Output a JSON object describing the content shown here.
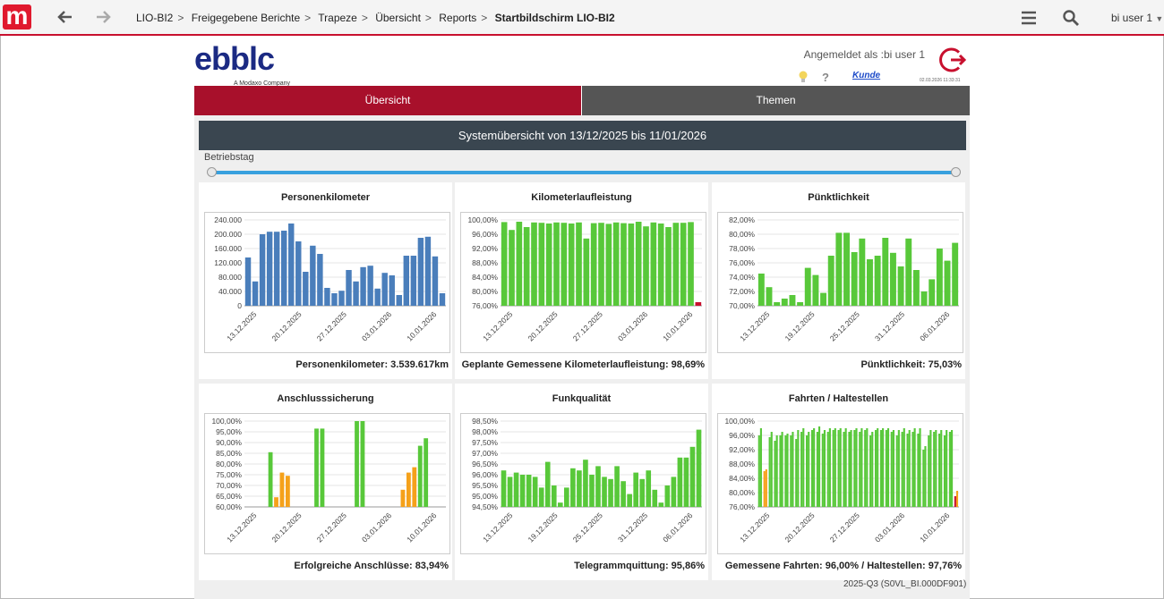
{
  "app": {
    "logo_letter": "m",
    "brand_name": "ebblc",
    "brand_sub": "A Modaxo Company"
  },
  "breadcrumb": [
    "LIO-BI2",
    "Freigegebene Berichte",
    "Trapeze",
    "Übersicht",
    "Reports"
  ],
  "breadcrumb_current": "Startbildschirm LIO-BI2",
  "user_menu": "bi user 1",
  "header": {
    "logged_in": "Angemeldet als :bi user 1",
    "kunde": "Kunde",
    "timestamp": "02.03.2026 11:33:31"
  },
  "tabs": [
    {
      "label": "Übersicht",
      "active": true
    },
    {
      "label": "Themen",
      "active": false
    }
  ],
  "banner": "Systemübersicht von 13/12/2025 bis 11/01/2026",
  "slider_label": "Betriebstag",
  "footer_code": "2025-Q3 (S0VL_BI.000DF901)",
  "colors": {
    "accent": "#a8102b",
    "blue_bar": "#4a7ebb",
    "green_bar": "#58c83a",
    "orange_bar": "#f5a11a",
    "red_bar": "#c8102e"
  },
  "panels": [
    {
      "title": "Personenkilometer",
      "footer": "Personenkilometer: 3.539.617km",
      "chart_data": {
        "type": "bar",
        "yticks": [
          "240.000",
          "200.000",
          "160.000",
          "120.000",
          "80.000",
          "40.000",
          "0"
        ],
        "ylim": [
          0,
          240000
        ],
        "xticks": [
          "13.12.2025",
          "20.12.2025",
          "27.12.2025",
          "03.01.2026",
          "10.01.2026"
        ],
        "values": [
          135000,
          68000,
          200000,
          207000,
          207000,
          210000,
          230000,
          180000,
          95000,
          168000,
          145000,
          50000,
          35000,
          42000,
          100000,
          68000,
          108000,
          112000,
          48000,
          92000,
          85000,
          30000,
          140000,
          140000,
          190000,
          193000,
          138000,
          35000
        ],
        "colors": [
          "blue"
        ]
      }
    },
    {
      "title": "Kilometerlaufleistung",
      "footer": "Geplante Gemessene Kilometerlaufleistung: 98,69%",
      "chart_data": {
        "type": "bar",
        "yticks": [
          "100,00%",
          "96,00%",
          "92,00%",
          "88,00%",
          "84,00%",
          "80,00%",
          "76,00%"
        ],
        "ylim": [
          76,
          100
        ],
        "xticks": [
          "13.12.2025",
          "20.12.2025",
          "27.12.2025",
          "03.01.2026",
          "10.01.2026"
        ],
        "values": [
          99.4,
          97.2,
          99.5,
          98.0,
          99.3,
          99.2,
          99.0,
          99.3,
          99.2,
          99.0,
          99.3,
          94.8,
          99.1,
          99.2,
          98.9,
          99.3,
          99.1,
          99.0,
          99.5,
          98.2,
          99.3,
          99.0,
          98.0,
          99.2,
          99.2,
          99.4,
          77.0
        ],
        "highlight_last": "red"
      }
    },
    {
      "title": "Pünktlichkeit",
      "footer": "Pünktlichkeit: 75,03%",
      "chart_data": {
        "type": "bar",
        "yticks": [
          "82,00%",
          "80,00%",
          "78,00%",
          "76,00%",
          "74,00%",
          "72,00%",
          "70,00%"
        ],
        "ylim": [
          70,
          82
        ],
        "xticks": [
          "13.12.2025",
          "19.12.2025",
          "25.12.2025",
          "31.12.2025",
          "06.01.2026"
        ],
        "values": [
          74.5,
          72.6,
          70.5,
          71.0,
          71.5,
          70.5,
          75.3,
          74.3,
          71.8,
          77.0,
          80.2,
          80.2,
          77.5,
          79.4,
          76.5,
          77.0,
          79.5,
          77.4,
          75.5,
          79.4,
          75.0,
          72.0,
          73.7,
          78.0,
          76.3,
          78.8
        ]
      }
    },
    {
      "title": "Anschlusssicherung",
      "footer": "Erfolgreiche Anschlüsse: 83,94%",
      "chart_data": {
        "type": "bar",
        "yticks": [
          "100,00%",
          "95,00%",
          "90,00%",
          "85,00%",
          "80,00%",
          "75,00%",
          "70,00%",
          "65,00%",
          "60,00%"
        ],
        "ylim": [
          60,
          100
        ],
        "xticks": [
          "13.12.2025",
          "20.12.2025",
          "27.12.2025",
          "03.01.2026",
          "10.01.2026"
        ],
        "bars": [
          {
            "x": 4,
            "v": 85.5,
            "c": "green"
          },
          {
            "x": 5,
            "v": 64.5,
            "c": "orange"
          },
          {
            "x": 6,
            "v": 76.0,
            "c": "orange"
          },
          {
            "x": 7,
            "v": 74.5,
            "c": "orange"
          },
          {
            "x": 12,
            "v": 96.5,
            "c": "green"
          },
          {
            "x": 13,
            "v": 96.5,
            "c": "green"
          },
          {
            "x": 19,
            "v": 100.0,
            "c": "green"
          },
          {
            "x": 20,
            "v": 100.0,
            "c": "green"
          },
          {
            "x": 27,
            "v": 68.0,
            "c": "orange"
          },
          {
            "x": 28,
            "v": 76.0,
            "c": "orange"
          },
          {
            "x": 29,
            "v": 78.5,
            "c": "orange"
          },
          {
            "x": 30,
            "v": 88.5,
            "c": "green"
          },
          {
            "x": 31,
            "v": 92.0,
            "c": "green"
          }
        ],
        "slots": 35
      }
    },
    {
      "title": "Funkqualität",
      "footer": "Telegrammquittung: 95,86%",
      "chart_data": {
        "type": "bar",
        "yticks": [
          "98,50%",
          "98,00%",
          "97,50%",
          "97,00%",
          "96,50%",
          "96,00%",
          "95,50%",
          "95,00%",
          "94,50%"
        ],
        "ylim": [
          94.5,
          98.5
        ],
        "xticks": [
          "13.12.2025",
          "19.12.2025",
          "25.12.2025",
          "31.12.2025",
          "06.01.2026"
        ],
        "values": [
          96.2,
          95.9,
          96.1,
          96.0,
          96.0,
          95.9,
          95.4,
          96.6,
          95.5,
          94.7,
          95.4,
          96.3,
          96.2,
          96.7,
          96.0,
          96.4,
          95.9,
          95.8,
          96.4,
          95.7,
          95.1,
          96.1,
          95.8,
          96.2,
          95.3,
          94.7,
          95.5,
          95.9,
          96.8,
          96.8,
          97.3,
          98.1
        ]
      }
    },
    {
      "title": "Fahrten / Haltestellen",
      "footer": "Gemessene Fahrten: 96,00% / Haltestellen: 97,76%",
      "chart_data": {
        "type": "grouped-bar",
        "yticks": [
          "100,00%",
          "96,00%",
          "92,00%",
          "88,00%",
          "84,00%",
          "80,00%",
          "76,00%"
        ],
        "ylim": [
          76,
          100
        ],
        "xticks": [
          "13.12.2025",
          "20.12.2025",
          "27.12.2025",
          "03.01.2026",
          "10.01.2026"
        ],
        "series": [
          {
            "name": "Gemessene Fahrten",
            "values": [
              96.0,
              86.0,
              95.5,
              94.5,
              96.0,
              96.0,
              96.0,
              95.0,
              97.0,
              96.0,
              97.5,
              97.0,
              96.5,
              97.0,
              97.5,
              97.5,
              97.0,
              97.0,
              97.5,
              97.0,
              97.5,
              96.0,
              97.5,
              97.5,
              97.5,
              97.0,
              96.0,
              97.0,
              96.5,
              97.0,
              96.5,
              92.0,
              96.0,
              97.0,
              96.5,
              96.0,
              97.0,
              79.0
            ]
          },
          {
            "name": "Haltestellen",
            "values": [
              98.0,
              86.5,
              97.0,
              96.0,
              97.0,
              96.5,
              97.0,
              97.5,
              98.0,
              97.0,
              98.0,
              98.5,
              97.5,
              98.0,
              98.0,
              98.0,
              98.0,
              97.5,
              98.0,
              98.0,
              98.0,
              97.0,
              98.0,
              98.0,
              98.0,
              97.5,
              97.5,
              98.0,
              97.5,
              98.0,
              98.0,
              93.0,
              97.5,
              97.5,
              97.5,
              97.5,
              97.5,
              80.5
            ]
          }
        ]
      }
    }
  ]
}
